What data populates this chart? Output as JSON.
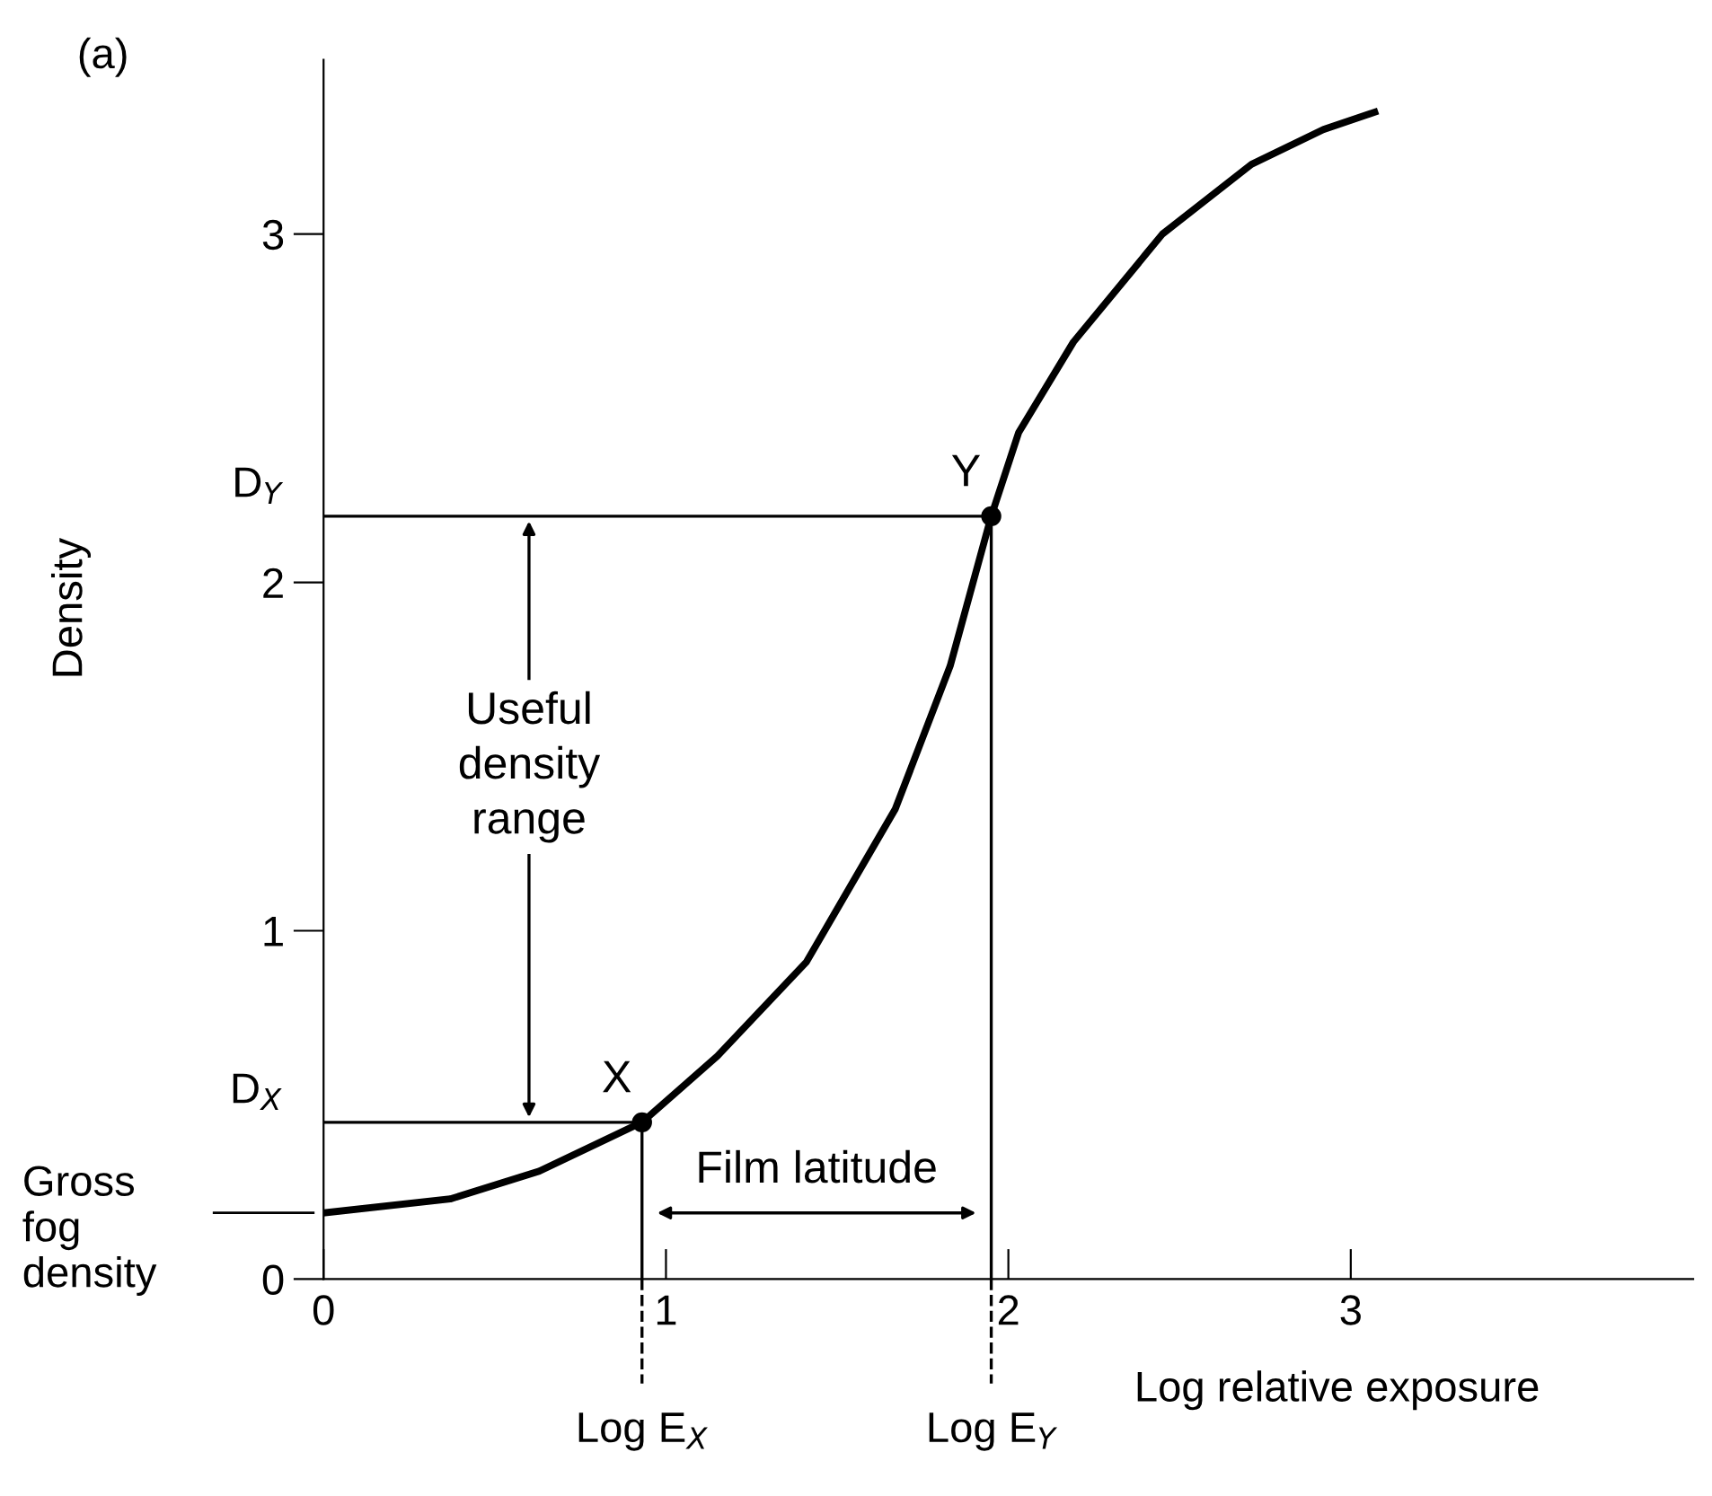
{
  "chart_data": {
    "type": "line",
    "xlabel": "Log relative exposure",
    "ylabel": "Density",
    "xlim": [
      0,
      4
    ],
    "ylim": [
      0,
      3.5
    ],
    "xticks": [
      0,
      1,
      2,
      3
    ],
    "yticks": [
      0,
      1,
      2,
      3
    ],
    "grid": false,
    "line_style": "solid",
    "marker": "none",
    "series": [
      {
        "color": "#000000",
        "x": [
          0,
          0.37,
          0.63,
          0.93,
          1.15,
          1.41,
          1.67,
          1.83,
          1.95,
          2.03,
          2.19,
          2.45,
          2.71,
          2.92,
          3.07
        ],
        "values": [
          0.19,
          0.23,
          0.31,
          0.45,
          0.64,
          0.91,
          1.35,
          1.76,
          2.19,
          2.43,
          2.69,
          3.0,
          3.2,
          3.3,
          3.35
        ]
      },
      {
        "type": "scatter",
        "color": "#000000",
        "marker": "circle",
        "x": [
          0.93,
          1.95
        ],
        "values": [
          0.45,
          2.19
        ]
      }
    ],
    "ref_lines": [
      {
        "axis": "y",
        "value": 2.19,
        "label": "D$_{Y}$"
      },
      {
        "axis": "y",
        "value": 0.45,
        "label": "D$_{X}$"
      },
      {
        "axis": "y",
        "value": 0.19,
        "label": "Gross\nfog\ndensity"
      },
      {
        "axis": "x",
        "value": 0.93,
        "label": "Log E$_{X}$"
      },
      {
        "axis": "x",
        "value": 1.95,
        "label": "Log E$_{Y}$"
      }
    ],
    "annotations": [
      "(a)",
      {
        "text": "X",
        "x": 0.93,
        "y": 0.45
      },
      {
        "text": "Y",
        "x": 1.95,
        "y": 2.19
      },
      "Useful\ndensity\nrange",
      "Film latitude"
    ]
  }
}
